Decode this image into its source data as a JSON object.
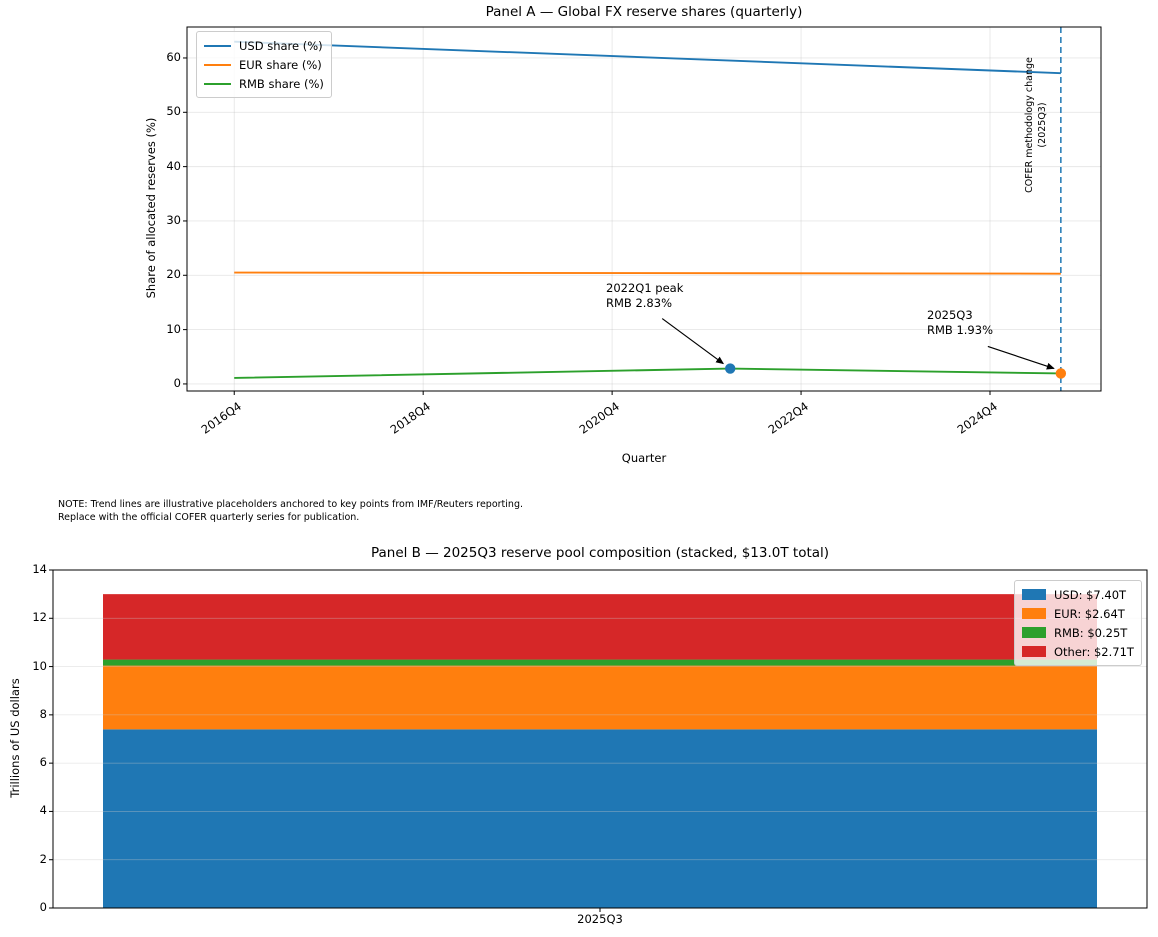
{
  "note": {
    "line1": "NOTE: Trend lines are illustrative placeholders anchored to key points from IMF/Reuters reporting.",
    "line2": "Replace with the official COFER quarterly series for publication."
  },
  "chart_data": [
    {
      "type": "line",
      "title": "Panel A — Global FX reserve shares (quarterly)",
      "xlabel": "Quarter",
      "ylabel": "Share of allocated reserves (%)",
      "x_encoding": "quarter index, 0 = 2016Q4, 35 = 2025Q3",
      "x_ticks": [
        "2016Q4",
        "2018Q4",
        "2020Q4",
        "2022Q4",
        "2024Q4"
      ],
      "x_tick_quarters": [
        0,
        8,
        16,
        24,
        32
      ],
      "y_ticks": [
        0,
        10,
        20,
        30,
        40,
        50,
        60
      ],
      "ylim": [
        -1.3,
        65.7
      ],
      "xlim_quarters": [
        -2.0,
        36.7
      ],
      "grid": true,
      "legend_position": "upper left",
      "series": [
        {
          "name": "USD share (%)",
          "color": "#1f77b4",
          "points": [
            [
              0,
              63.0
            ],
            [
              35,
              57.2
            ]
          ]
        },
        {
          "name": "EUR share (%)",
          "color": "#ff7f0e",
          "points": [
            [
              0,
              20.5
            ],
            [
              35,
              20.3
            ]
          ]
        },
        {
          "name": "RMB share (%)",
          "color": "#2ca02c",
          "points": [
            [
              0,
              1.1
            ],
            [
              21,
              2.83
            ],
            [
              35,
              1.93
            ]
          ]
        }
      ],
      "markers": [
        {
          "quarter": 21,
          "value": 2.83,
          "color": "#1f77b4"
        },
        {
          "quarter": 35,
          "value": 1.93,
          "color": "#ff7f0e"
        }
      ],
      "vline": {
        "quarter": 35,
        "color": "#1f77b4",
        "style": "dashed",
        "label_line1": "COFER methodology change",
        "label_line2": "(2025Q3)"
      },
      "annotations": [
        {
          "line1": "2022Q1 peak",
          "line2": "RMB 2.83%",
          "target_quarter": 21,
          "target_value": 2.83
        },
        {
          "line1": "2025Q3",
          "line2": "RMB 1.93%",
          "target_quarter": 35,
          "target_value": 1.93
        }
      ]
    },
    {
      "type": "bar",
      "stacked": true,
      "title": "Panel B — 2025Q3 reserve pool composition (stacked, $13.0T total)",
      "xlabel": "",
      "ylabel": "Trillions of US dollars",
      "categories": [
        "2025Q3"
      ],
      "total": 13.0,
      "y_ticks": [
        0,
        2,
        4,
        6,
        8,
        10,
        12,
        14
      ],
      "ylim": [
        0,
        14
      ],
      "grid": true,
      "legend_position": "upper right",
      "series": [
        {
          "name": "USD: $7.40T",
          "value": 7.4,
          "color": "#1f77b4"
        },
        {
          "name": "EUR: $2.64T",
          "value": 2.64,
          "color": "#ff7f0e"
        },
        {
          "name": "RMB: $0.25T",
          "value": 0.25,
          "color": "#2ca02c"
        },
        {
          "name": "Other: $2.71T",
          "value": 2.71,
          "color": "#d62728"
        }
      ]
    }
  ]
}
